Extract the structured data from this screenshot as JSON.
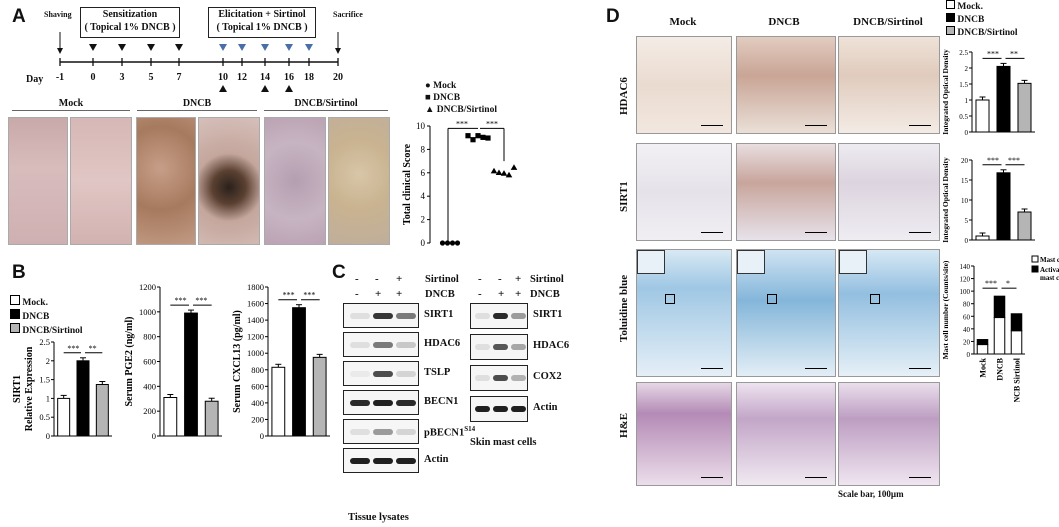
{
  "panelA": {
    "letter": "A",
    "shaving": "Shaving",
    "sacrifice": "Sacrifice",
    "sensitization": "Sensitization",
    "sensitization_sub": "( Topical 1% DNCB )",
    "elicitation": "Elicitation + Sirtinol",
    "elicitation_sub": "( Topical 1% DNCB )",
    "day_label": "Day",
    "days": [
      "-1",
      "0",
      "3",
      "5",
      "7",
      "10",
      "12",
      "14",
      "16",
      "18",
      "20"
    ],
    "groups": [
      "Mock",
      "DNCB",
      "DNCB/Sirtinol"
    ],
    "legend": [
      "Mock",
      "DNCB",
      "DNCB/Sirtinol"
    ],
    "sig": [
      "***",
      "***"
    ],
    "chart_data": {
      "type": "scatter",
      "ylabel": "Total clinical Score",
      "ylim": [
        0,
        10
      ],
      "yticks": [
        "0",
        "2",
        "4",
        "6",
        "8",
        "10"
      ],
      "series": [
        {
          "name": "Mock",
          "values": [
            0,
            0,
            0,
            0
          ]
        },
        {
          "name": "DNCB",
          "values": [
            9,
            9,
            9,
            9.2,
            8.8
          ]
        },
        {
          "name": "DNCB/Sirtinol",
          "values": [
            6,
            6.2,
            5.8,
            6,
            6.3
          ]
        }
      ]
    }
  },
  "panelB": {
    "letter": "B",
    "legend": [
      "Mock.",
      "DNCB",
      "DNCB/Sirtinol"
    ],
    "chart_data": [
      {
        "type": "bar",
        "ylabel": "SIRT1\nRelative Expression",
        "ylim": [
          0,
          2.5
        ],
        "yticks": [
          "0",
          "0.5",
          "1",
          "1.5",
          "2",
          "2.5"
        ],
        "categories": [
          "Mock.",
          "DNCB",
          "DNCB/Sirtinol"
        ],
        "values": [
          1.0,
          2.0,
          1.37
        ],
        "sig": [
          "***",
          "**"
        ]
      },
      {
        "type": "bar",
        "ylabel": "Serum PGE2 (ng/ml)",
        "ylim": [
          0,
          1200
        ],
        "yticks": [
          "0",
          "200",
          "400",
          "600",
          "800",
          "1000",
          "1200"
        ],
        "categories": [
          "Mock.",
          "DNCB",
          "DNCB/Sirtinol"
        ],
        "values": [
          310,
          990,
          280
        ],
        "sig": [
          "***",
          "***"
        ]
      },
      {
        "type": "bar",
        "ylabel": "Serum CXCL13 (pg/ml)",
        "ylim": [
          0,
          1800
        ],
        "yticks": [
          "0",
          "200",
          "400",
          "600",
          "800",
          "1000",
          "1200",
          "1400",
          "1600",
          "1800"
        ],
        "categories": [
          "Mock.",
          "DNCB",
          "DNCB/Sirtinol"
        ],
        "values": [
          830,
          1550,
          950
        ],
        "sig": [
          "***",
          "***"
        ]
      }
    ]
  },
  "panelC": {
    "letter": "C",
    "sirtinol": "Sirtinol",
    "dncb": "DNCB",
    "lane_signs_top": [
      "-",
      "-",
      "+"
    ],
    "lane_signs_bottom": [
      "-",
      "+",
      "+"
    ],
    "tissue_bands": [
      "SIRT1",
      "HDAC6",
      "TSLP",
      "BECN1",
      "pBECN1",
      "Actin"
    ],
    "pbecn_sup": "S14",
    "tissue_caption": "Tissue lysates",
    "mast_bands": [
      "SIRT1",
      "HDAC6",
      "COX2",
      "Actin"
    ],
    "mast_caption": "Skin mast cells"
  },
  "panelD": {
    "letter": "D",
    "columns": [
      "Mock",
      "DNCB",
      "DNCB/Sirtinol"
    ],
    "rows": [
      "HDAC6",
      "SIRT1",
      "Toluidine blue",
      "H&E"
    ],
    "legend": [
      "Mock.",
      "DNCB",
      "DNCB/Sirtinol"
    ],
    "scale_bar": "Scale bar, 100µm",
    "chart_data": [
      {
        "type": "bar",
        "ylabel": "Integrated Optical Density",
        "ylim": [
          0,
          2.5
        ],
        "yticks": [
          "0",
          "0.5",
          "1",
          "1.5",
          "2",
          "2.5"
        ],
        "categories": [
          "Mock.",
          "DNCB",
          "DNCB/Sirtinol"
        ],
        "values": [
          1.0,
          2.05,
          1.52
        ],
        "sig": [
          "***",
          "**"
        ]
      },
      {
        "type": "bar",
        "ylabel": "Integrated Optical Density",
        "ylim": [
          0,
          20
        ],
        "yticks": [
          "0",
          "5",
          "10",
          "15",
          "20"
        ],
        "categories": [
          "Mock.",
          "DNCB",
          "DNCB/Sirtinol"
        ],
        "values": [
          1.0,
          16.8,
          7.0
        ],
        "sig": [
          "***",
          "***"
        ]
      },
      {
        "type": "bar",
        "ylabel": "Mast cell number (Counts/site)",
        "ylim": [
          0,
          140
        ],
        "yticks": [
          "0",
          "20",
          "40",
          "60",
          "80",
          "100",
          "120",
          "140"
        ],
        "categories": [
          "Mock",
          "DNCB",
          "DNCB Sirtinol"
        ],
        "series": [
          {
            "name": "Mast cells",
            "values": [
              15,
              58,
              37
            ]
          },
          {
            "name": "Activated mast cells",
            "values": [
              8,
              34,
              27
            ]
          }
        ],
        "sig": [
          "***",
          "*"
        ]
      }
    ]
  }
}
